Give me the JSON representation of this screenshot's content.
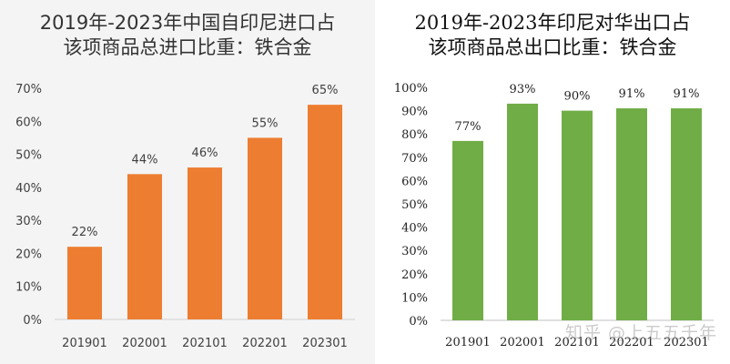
{
  "chart_data": [
    {
      "type": "bar",
      "title_lines": [
        "2019年-2023年中国自印尼进口占",
        "该项商品总进口比重：铁合金"
      ],
      "categories": [
        "201901",
        "202001",
        "202101",
        "202201",
        "202301"
      ],
      "values": [
        22,
        44,
        46,
        55,
        65
      ],
      "value_labels": [
        "22%",
        "44%",
        "46%",
        "55%",
        "65%"
      ],
      "yticks": [
        "0%",
        "10%",
        "20%",
        "30%",
        "40%",
        "50%",
        "60%",
        "70%"
      ],
      "ylim": [
        0,
        70
      ],
      "grid": false,
      "color": "#ED7D31"
    },
    {
      "type": "bar",
      "title_lines": [
        "2019年-2023年印尼对华出口占",
        "该项商品总出口比重：铁合金"
      ],
      "categories": [
        "201901",
        "202001",
        "202101",
        "202201",
        "202301"
      ],
      "values": [
        77,
        93,
        90,
        91,
        91
      ],
      "value_labels": [
        "77%",
        "93%",
        "90%",
        "91%",
        "91%"
      ],
      "yticks": [
        "0%",
        "10%",
        "20%",
        "30%",
        "40%",
        "50%",
        "60%",
        "70%",
        "80%",
        "90%",
        "100%"
      ],
      "ylim": [
        0,
        100
      ],
      "grid": false,
      "color": "#70AD47"
    }
  ],
  "watermark": "知乎 @上五五千年"
}
